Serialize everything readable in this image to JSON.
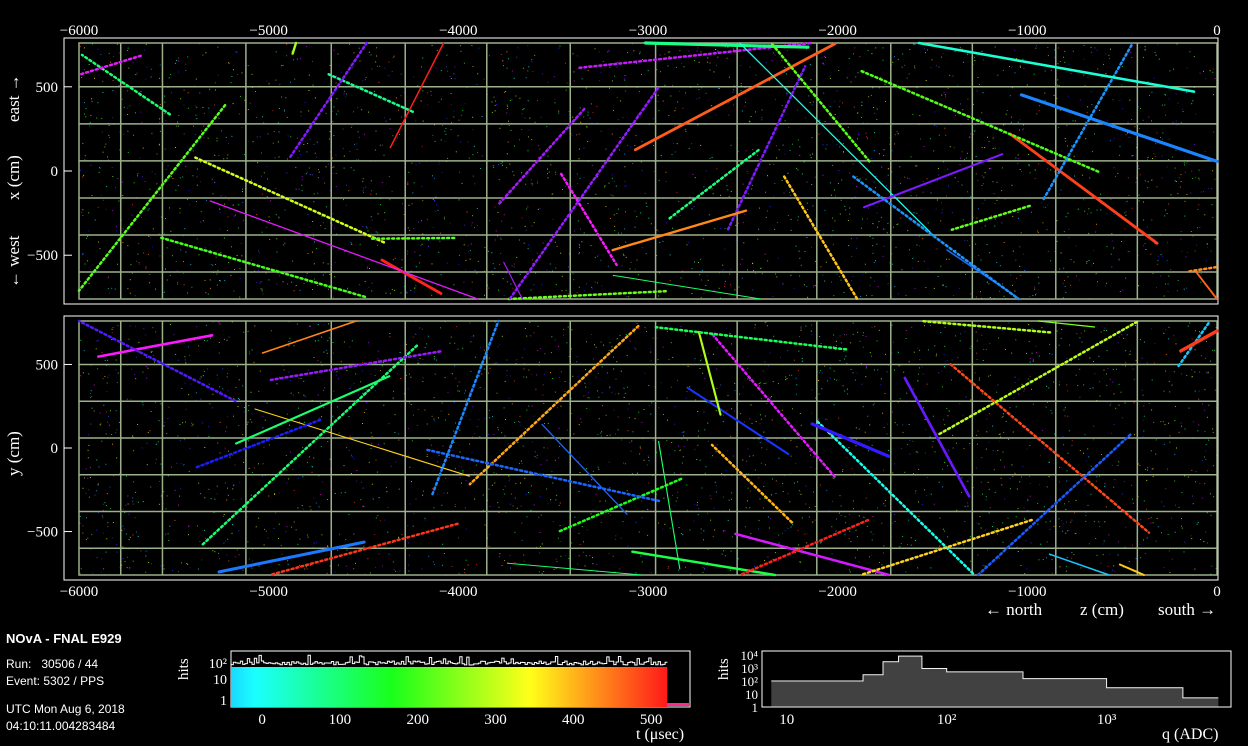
{
  "detector": "NOvA - FNAL E929",
  "run_label": "Run:",
  "run_value": "30506 / 44",
  "event_label": "Event:",
  "event_value": "5302 / PPS",
  "date": "UTC Mon Aug 6, 2018",
  "time": "04:10:11.004283484",
  "colors": {
    "background": "#000000",
    "grid": "#9cb08c",
    "frame": "#ffffff",
    "hist_fill": "#bbbbbb",
    "hist_line": "#ffffff"
  },
  "top_view": {
    "axis_label_left": "← west",
    "axis_label_mid": "x (cm)",
    "axis_label_right": "east →",
    "y_ticks": [
      "500",
      "0",
      "−500"
    ],
    "y_range": [
      -760,
      760
    ],
    "z_ticks_top": [
      "−6000",
      "−5000",
      "−4000",
      "−3000",
      "−2000",
      "−1000",
      "0"
    ]
  },
  "side_view": {
    "axis_label": "y (cm)",
    "y_ticks": [
      "500",
      "0",
      "−500"
    ],
    "y_range": [
      -760,
      760
    ],
    "z_ticks_bottom": [
      "−6000",
      "−5000",
      "−4000",
      "−3000",
      "−2000",
      "−1000",
      "0"
    ]
  },
  "z_axis": {
    "label_left": "← north",
    "label_mid": "z (cm)",
    "label_right": "south →",
    "range": [
      -6000,
      0
    ]
  },
  "time_hist": {
    "ylabel": "hits",
    "xlabel": "t (μsec)",
    "y_ticks": [
      "10²",
      "10",
      "1"
    ],
    "x_ticks": [
      "0",
      "100",
      "200",
      "300",
      "400",
      "500"
    ],
    "x_range": [
      -40,
      550
    ],
    "y_scale": "log"
  },
  "charge_hist": {
    "ylabel": "hits",
    "xlabel": "q (ADC)",
    "y_ticks": [
      "10⁴",
      "10³",
      "10²",
      "10",
      "1"
    ],
    "x_ticks": [
      "10",
      "10²",
      "10³"
    ],
    "x_scale": "log",
    "y_scale": "log"
  },
  "chart_data": [
    {
      "type": "bar",
      "title": "",
      "xlabel": "t (μsec)",
      "ylabel": "hits",
      "x_range": [
        -40,
        550
      ],
      "y_scale": "log",
      "note_values": "hit counts per time bin, roughly flat around 150 between 0 and 520 μsec",
      "approx_level": 150
    },
    {
      "type": "line",
      "title": "",
      "xlabel": "q (ADC)",
      "ylabel": "hits",
      "x_scale": "log",
      "y_scale": "log",
      "x": [
        8,
        20,
        30,
        40,
        50,
        70,
        100,
        300,
        1000,
        3000,
        5000
      ],
      "y": [
        100,
        100,
        300,
        3000,
        8000,
        900,
        500,
        150,
        30,
        5,
        2
      ]
    }
  ]
}
